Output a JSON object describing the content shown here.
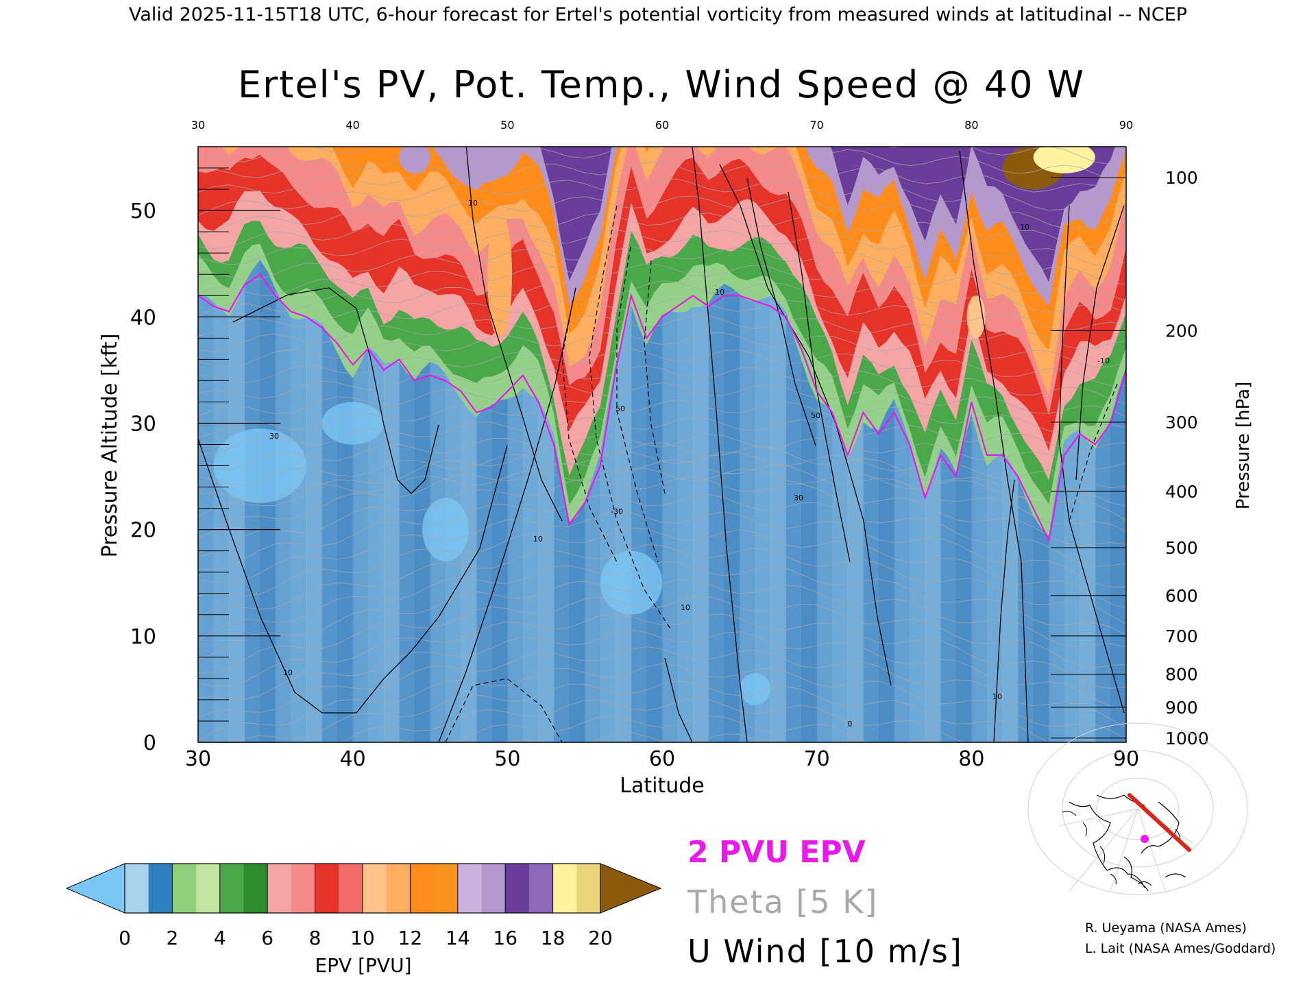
{
  "header": "Valid 2025-11-15T18 UTC, 6-hour forecast for Ertel's potential vorticity from measured winds at latitudinal -- NCEP",
  "chart_data": {
    "type": "heatmap",
    "title": "Ertel's PV, Pot. Temp., Wind Speed @ 40 W",
    "xlabel": "Latitude",
    "ylabel_left": "Pressure Altitude [kft]",
    "ylabel_right": "Pressure [hPa]",
    "xlim": [
      30,
      90
    ],
    "ylim": [
      0,
      56
    ],
    "x_ticks": [
      "30",
      "40",
      "50",
      "60",
      "70",
      "80",
      "90"
    ],
    "x_tick_values": [
      30,
      40,
      50,
      60,
      70,
      80,
      90
    ],
    "y_ticks": [
      "0",
      "10",
      "20",
      "30",
      "40",
      "50"
    ],
    "y_tick_values": [
      0,
      10,
      20,
      30,
      40,
      50
    ],
    "pressure_ticks": [
      "100",
      "200",
      "300",
      "400",
      "500",
      "600",
      "700",
      "800",
      "900",
      "1000"
    ],
    "pressure_tick_altitudes_kft": [
      53.1,
      38.7,
      30.1,
      23.6,
      18.3,
      13.8,
      10.0,
      6.4,
      3.3,
      0.4
    ],
    "tropopause_kft": {
      "lat": [
        30,
        31,
        32,
        33,
        34,
        35,
        36,
        37,
        38,
        39,
        40,
        41,
        42,
        43,
        44,
        45,
        46,
        47,
        48,
        49,
        50,
        51,
        52,
        53,
        54,
        55,
        56,
        57,
        58,
        59,
        60,
        61,
        62,
        63,
        64,
        65,
        66,
        67,
        68,
        69,
        70,
        71,
        72,
        73,
        74,
        75,
        76,
        77,
        78,
        79,
        80,
        81,
        82,
        83,
        84,
        85,
        86,
        87,
        88,
        89,
        90
      ],
      "height": [
        42,
        41,
        40.5,
        43,
        44,
        42,
        40.5,
        40,
        39,
        37.5,
        35.5,
        37,
        35,
        36,
        34,
        34.5,
        34,
        33,
        31,
        31.5,
        33,
        34.5,
        32,
        28,
        20.5,
        22.5,
        26,
        35,
        42,
        38,
        40,
        41,
        42,
        41,
        42,
        42,
        41.5,
        41,
        40,
        37,
        33,
        31,
        27,
        31,
        29,
        31,
        28,
        23,
        27,
        25,
        32,
        27,
        27,
        25,
        22,
        19,
        27,
        29,
        28,
        30,
        35
      ]
    },
    "u_wind_contours": [
      {
        "label": "10",
        "value": 10
      },
      {
        "label": "30",
        "value": 30
      },
      {
        "label": "50",
        "value": 50
      },
      {
        "label": "0",
        "value": 0
      },
      {
        "label": "-10",
        "value": -10
      },
      {
        "label": "-30",
        "value": -30
      }
    ],
    "colorbar": {
      "label": "EPV [PVU]",
      "ticks": [
        "0",
        "2",
        "4",
        "6",
        "8",
        "10",
        "12",
        "14",
        "16",
        "18",
        "20"
      ],
      "tick_values": [
        0,
        2,
        4,
        6,
        8,
        10,
        12,
        14,
        16,
        18,
        20
      ],
      "under_color": "#7cc6f4",
      "over_color": "#8b5a0c",
      "colors": [
        "#a9d3ea",
        "#2f7fc1",
        "#8fcf7b",
        "#c3e3a0",
        "#4aa84a",
        "#2e8b2e",
        "#f4a6a6",
        "#f58a8a",
        "#e6332a",
        "#f06a6a",
        "#fec38a",
        "#fdae61",
        "#ff8c1a",
        "#f7921e",
        "#c9b3dd",
        "#b598cc",
        "#6a3d9a",
        "#8e6ab8",
        "#fff3a0",
        "#e8d47c"
      ]
    },
    "legend": {
      "pvu": "2 PVU EPV",
      "theta": "Theta [5 K]",
      "uwind": "U Wind [10 m/s]"
    },
    "credits": [
      "R. Ueyama (NASA Ames)",
      "L. Lait (NASA Ames/Goddard)"
    ],
    "colors": {
      "pvu_line": "#e81ae8",
      "theta": "#a8a8a8",
      "track": "#d42a1a",
      "magenta_dot": "#ee1aee"
    }
  }
}
